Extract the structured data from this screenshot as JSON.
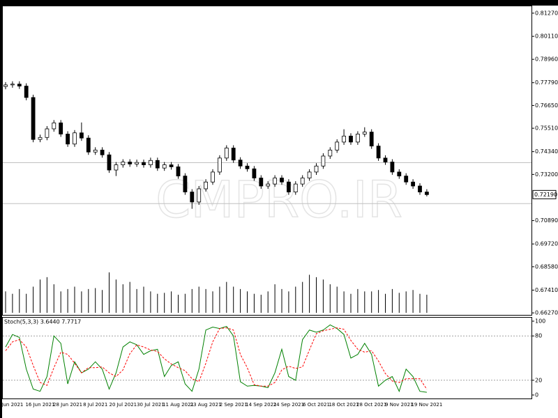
{
  "chart_data": [
    {
      "type": "candlestick",
      "categories": [
        null,
        "Jun 2021",
        null,
        null,
        null,
        "16 Jun 2021",
        null,
        null,
        null,
        "28 Jun 2021",
        null,
        null,
        null,
        "8 Jul 2021",
        null,
        null,
        null,
        "20 Jul 2021",
        null,
        null,
        null,
        "30 Jul 2021",
        null,
        null,
        null,
        "11 Aug 2021",
        null,
        null,
        null,
        "23 Aug 2021",
        null,
        null,
        null,
        "2 Sep 2021",
        null,
        null,
        null,
        "14 Sep 2021",
        null,
        null,
        null,
        "24 Sep 2021",
        null,
        null,
        null,
        "6 Oct 2021",
        null,
        null,
        null,
        "18 Oct 2021",
        null,
        null,
        null,
        "28 Oct 2021",
        null,
        null,
        null,
        "9 Nov 2021",
        null,
        null,
        null,
        "19 Nov 2021"
      ],
      "open": [
        0.776,
        0.7768,
        0.7772,
        0.7762,
        0.7705,
        0.7495,
        0.7505,
        0.7548,
        0.7578,
        0.7522,
        0.7472,
        0.7528,
        0.7502,
        0.7432,
        0.7442,
        0.7418,
        0.7342,
        0.7368,
        0.7382,
        0.7372,
        0.738,
        0.7368,
        0.739,
        0.7352,
        0.7368,
        0.7358,
        0.7312,
        0.7232,
        0.7182,
        0.7248,
        0.7282,
        0.7332,
        0.7402,
        0.7452,
        0.7392,
        0.7362,
        0.7348,
        0.7302,
        0.7262,
        0.7272,
        0.7302,
        0.7282,
        0.7232,
        0.7272,
        0.7302,
        0.7332,
        0.7362,
        0.7412,
        0.7442,
        0.7482,
        0.7512,
        0.7482,
        0.7522,
        0.7532,
        0.7462,
        0.7402,
        0.7382,
        0.7332,
        0.7312,
        0.7282,
        0.7262,
        0.7232
      ],
      "high": [
        0.7782,
        0.7786,
        0.7786,
        0.7776,
        0.7719,
        0.7519,
        0.7562,
        0.7592,
        0.7592,
        0.7536,
        0.7542,
        0.758,
        0.7516,
        0.7456,
        0.7456,
        0.7432,
        0.7382,
        0.7396,
        0.7396,
        0.7394,
        0.7394,
        0.7404,
        0.7404,
        0.7382,
        0.7382,
        0.7372,
        0.7326,
        0.7246,
        0.7262,
        0.7296,
        0.7346,
        0.7416,
        0.7466,
        0.7466,
        0.7406,
        0.7376,
        0.7362,
        0.7316,
        0.7286,
        0.7316,
        0.7316,
        0.7296,
        0.7286,
        0.7316,
        0.7346,
        0.7376,
        0.7426,
        0.7456,
        0.7496,
        0.7546,
        0.7526,
        0.7536,
        0.7556,
        0.7546,
        0.7476,
        0.7416,
        0.7396,
        0.7346,
        0.7326,
        0.7296,
        0.7276,
        0.7246
      ],
      "low": [
        0.7746,
        0.7754,
        0.7748,
        0.7691,
        0.7481,
        0.7481,
        0.7491,
        0.7534,
        0.7508,
        0.7458,
        0.7458,
        0.7488,
        0.7418,
        0.7418,
        0.7404,
        0.7328,
        0.7312,
        0.7354,
        0.7358,
        0.7358,
        0.7354,
        0.7354,
        0.7338,
        0.7338,
        0.7344,
        0.7298,
        0.7218,
        0.7148,
        0.7168,
        0.7234,
        0.7268,
        0.7318,
        0.7388,
        0.7378,
        0.7348,
        0.7334,
        0.7288,
        0.7248,
        0.7248,
        0.7258,
        0.7268,
        0.7218,
        0.7218,
        0.7258,
        0.7288,
        0.7318,
        0.7348,
        0.7398,
        0.7428,
        0.7468,
        0.7468,
        0.7468,
        0.7508,
        0.7448,
        0.7388,
        0.7368,
        0.7318,
        0.7298,
        0.7268,
        0.7248,
        0.7218,
        0.721
      ],
      "close": [
        0.7768,
        0.7772,
        0.7762,
        0.7705,
        0.7495,
        0.7505,
        0.7548,
        0.7578,
        0.7522,
        0.7472,
        0.7528,
        0.7502,
        0.7432,
        0.7442,
        0.7418,
        0.7342,
        0.7368,
        0.7382,
        0.7372,
        0.738,
        0.7368,
        0.739,
        0.7352,
        0.7368,
        0.7358,
        0.7312,
        0.7232,
        0.7182,
        0.7248,
        0.7282,
        0.7332,
        0.7402,
        0.7452,
        0.7392,
        0.7362,
        0.7348,
        0.7302,
        0.7262,
        0.7272,
        0.7302,
        0.7282,
        0.7232,
        0.7272,
        0.7302,
        0.7332,
        0.7362,
        0.7412,
        0.7442,
        0.7482,
        0.7512,
        0.7482,
        0.7522,
        0.7532,
        0.7462,
        0.7402,
        0.7382,
        0.7332,
        0.7312,
        0.7282,
        0.7262,
        0.7232,
        0.7219
      ],
      "volume": [
        45,
        40,
        50,
        40,
        55,
        70,
        75,
        60,
        45,
        50,
        55,
        45,
        50,
        52,
        48,
        85,
        70,
        60,
        65,
        50,
        55,
        45,
        40,
        42,
        45,
        38,
        40,
        50,
        55,
        50,
        45,
        55,
        65,
        55,
        50,
        45,
        40,
        38,
        45,
        60,
        50,
        45,
        55,
        65,
        80,
        75,
        70,
        60,
        55,
        45,
        40,
        50,
        45,
        45,
        48,
        40,
        50,
        42,
        45,
        48,
        40,
        38
      ],
      "ylim": [
        0.6617,
        0.8165
      ],
      "yticks": [
        {
          "value": 0.8127,
          "label": "0.81270"
        },
        {
          "value": 0.8011,
          "label": "0.80110"
        },
        {
          "value": 0.7896,
          "label": "0.78960"
        },
        {
          "value": 0.7779,
          "label": "0.77790"
        },
        {
          "value": 0.7665,
          "label": "0.76650"
        },
        {
          "value": 0.7551,
          "label": "0.75510"
        },
        {
          "value": 0.7434,
          "label": "0.74340"
        },
        {
          "value": 0.732,
          "label": "0.73200"
        },
        {
          "value": 0.7089,
          "label": "0.70890"
        },
        {
          "value": 0.6972,
          "label": "0.69720"
        },
        {
          "value": 0.6858,
          "label": "0.68580"
        },
        {
          "value": 0.6741,
          "label": "0.67410"
        },
        {
          "value": 0.6627,
          "label": "0.66270"
        }
      ],
      "current_price": {
        "value": 0.7219,
        "label": "0.72190"
      },
      "levels": [
        0.7379,
        0.7174
      ],
      "watermark": "CMPRO.IR",
      "color": "#000000"
    },
    {
      "type": "line",
      "title": "Stoch(5,3,3) 3.6440 7.7717",
      "series": [
        {
          "color": "#008000",
          "values": [
            65,
            82,
            78,
            35,
            8,
            5,
            25,
            80,
            70,
            15,
            45,
            30,
            35,
            45,
            35,
            8,
            30,
            65,
            72,
            68,
            55,
            60,
            62,
            25,
            40,
            45,
            15,
            5,
            35,
            88,
            92,
            90,
            93,
            80,
            18,
            12,
            13,
            12,
            10,
            30,
            62,
            25,
            20,
            75,
            88,
            85,
            88,
            95,
            90,
            82,
            50,
            55,
            70,
            55,
            12,
            20,
            25,
            5,
            35,
            25,
            5,
            3.644
          ]
        },
        {
          "color": "#ff0000",
          "dashed": true,
          "values": [
            60,
            72,
            75,
            65,
            40,
            17,
            13,
            37,
            58,
            55,
            43,
            30,
            37,
            37,
            38,
            30,
            25,
            34,
            56,
            68,
            65,
            61,
            59,
            49,
            42,
            37,
            33,
            22,
            18,
            43,
            72,
            90,
            91,
            88,
            55,
            37,
            14,
            12,
            12,
            17,
            34,
            39,
            36,
            38,
            61,
            83,
            87,
            89,
            91,
            89,
            74,
            62,
            58,
            60,
            46,
            29,
            19,
            17,
            22,
            22,
            22,
            7.7717
          ]
        }
      ],
      "ylim": [
        0,
        100
      ],
      "yticks": [
        0,
        20,
        80,
        100
      ],
      "levels": [
        20,
        80
      ]
    }
  ]
}
